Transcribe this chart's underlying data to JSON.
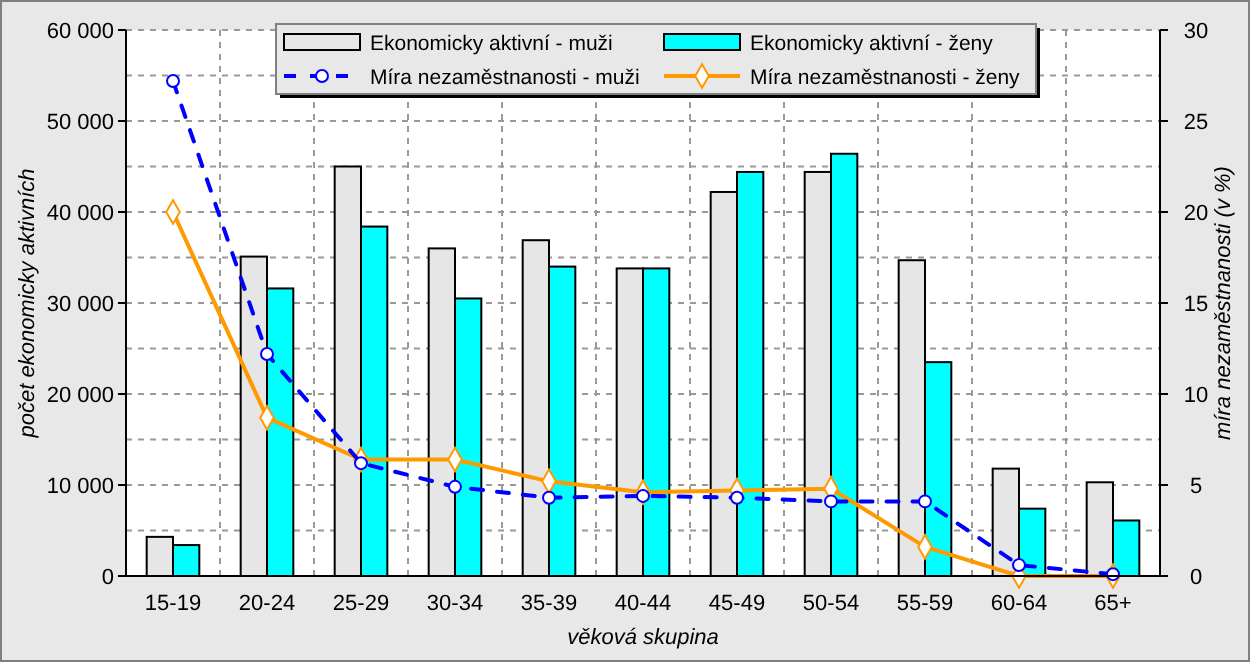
{
  "chart_data": {
    "type": "bar",
    "xlabel": "věková skupina",
    "ylabel": "počet ekonomicky aktivních",
    "y2label": "míra nezaměstnanosti (v %)",
    "categories": [
      "15-19",
      "20-24",
      "25-29",
      "30-34",
      "35-39",
      "40-44",
      "45-49",
      "50-54",
      "55-59",
      "60-64",
      "65+"
    ],
    "series": [
      {
        "name": "Ekonomicky aktivní - muži",
        "color": "#e6e6e6",
        "values": [
          4300,
          35100,
          45000,
          36000,
          36900,
          33800,
          42200,
          44400,
          34700,
          11800,
          10300
        ]
      },
      {
        "name": "Ekonomicky aktivní - ženy",
        "color": "#00ffff",
        "values": [
          3400,
          31600,
          38400,
          30500,
          34000,
          33800,
          44400,
          46400,
          23500,
          7400,
          6100
        ]
      },
      {
        "name": "Míra nezaměstnanosti - muži",
        "type": "line",
        "axis": "y2",
        "color": "#0000ff",
        "marker": "circle",
        "line_style": "dashed",
        "values": [
          27.2,
          12.2,
          6.2,
          4.9,
          4.3,
          4.4,
          4.3,
          4.1,
          4.1,
          0.6,
          0.1
        ]
      },
      {
        "name": "Míra nezaměstnanosti - ženy",
        "type": "line",
        "axis": "y2",
        "color": "#ff9900",
        "marker": "diamond",
        "line_style": "solid",
        "values": [
          20,
          8.7,
          6.4,
          6.4,
          5.2,
          4.6,
          4.7,
          4.8,
          1.6,
          0,
          0
        ]
      }
    ],
    "ylim": [
      0,
      60000
    ],
    "yticks": [
      {
        "value": 0,
        "label": "0"
      },
      {
        "value": 10000,
        "label": "10 000"
      },
      {
        "value": 20000,
        "label": "20 000"
      },
      {
        "value": 30000,
        "label": "30 000"
      },
      {
        "value": 40000,
        "label": "40 000"
      },
      {
        "value": 50000,
        "label": "50 000"
      },
      {
        "value": 60000,
        "label": "60 000"
      }
    ],
    "y2lim": [
      0,
      30
    ],
    "y2ticks": [
      0,
      5,
      10,
      15,
      20,
      25,
      30
    ],
    "grid": true,
    "legend": "top"
  }
}
